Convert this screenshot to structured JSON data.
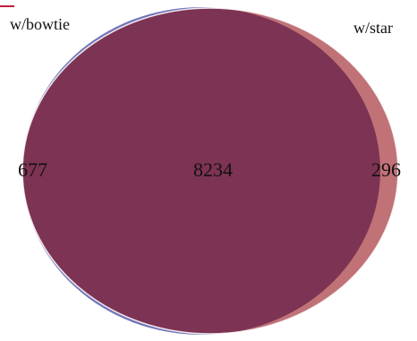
{
  "diagram": {
    "type": "venn",
    "sets": [
      {
        "label": "w/bowtie",
        "only_count": "677",
        "color": "#7274b8"
      },
      {
        "label": "w/star",
        "only_count": "296",
        "color": "#c07277"
      }
    ],
    "intersection": {
      "count": "8234",
      "color": "#7d3353"
    },
    "outline_color": "#ffffff",
    "accent_mark_color": "#c0203a"
  }
}
